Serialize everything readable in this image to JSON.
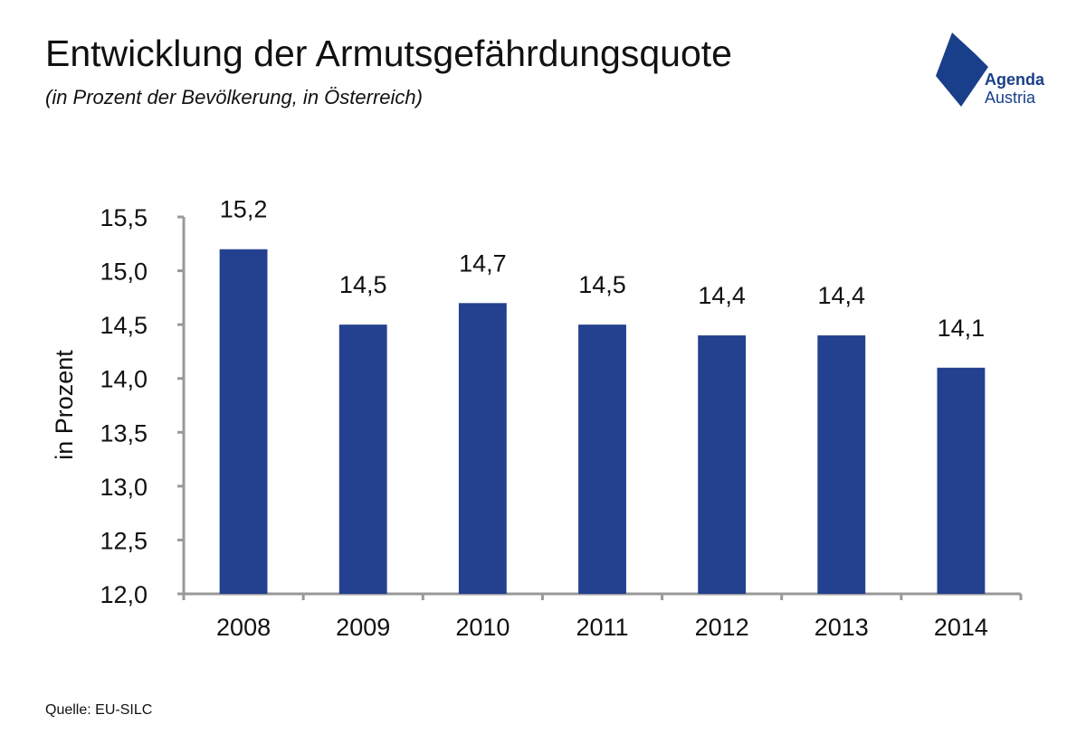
{
  "header": {
    "title": "Entwicklung der Armutsgefährdungsquote",
    "subtitle": "(in Prozent der Bevölkerung, in Österreich)"
  },
  "logo": {
    "line1": "Agenda",
    "line2": "Austria",
    "icon": "agenda-austria-logo-icon"
  },
  "footer": {
    "source": "Quelle: EU-SILC"
  },
  "colors": {
    "bar": "#24418f",
    "axis": "#999999",
    "logo": "#1a3f8a"
  },
  "chart_data": {
    "type": "bar",
    "categories": [
      "2008",
      "2009",
      "2010",
      "2011",
      "2012",
      "2013",
      "2014"
    ],
    "values": [
      15.2,
      14.5,
      14.7,
      14.5,
      14.4,
      14.4,
      14.1
    ],
    "data_labels": [
      "15,2",
      "14,5",
      "14,7",
      "14,5",
      "14,4",
      "14,4",
      "14,1"
    ],
    "ylabel": "in Prozent",
    "ylim": [
      12.0,
      15.5
    ],
    "yticks": [
      12.0,
      12.5,
      13.0,
      13.5,
      14.0,
      14.5,
      15.0,
      15.5
    ],
    "ytick_labels": [
      "12,0",
      "12,5",
      "13,0",
      "13,5",
      "14,0",
      "14,5",
      "15,0",
      "15,5"
    ],
    "grid": false,
    "legend": "none"
  }
}
